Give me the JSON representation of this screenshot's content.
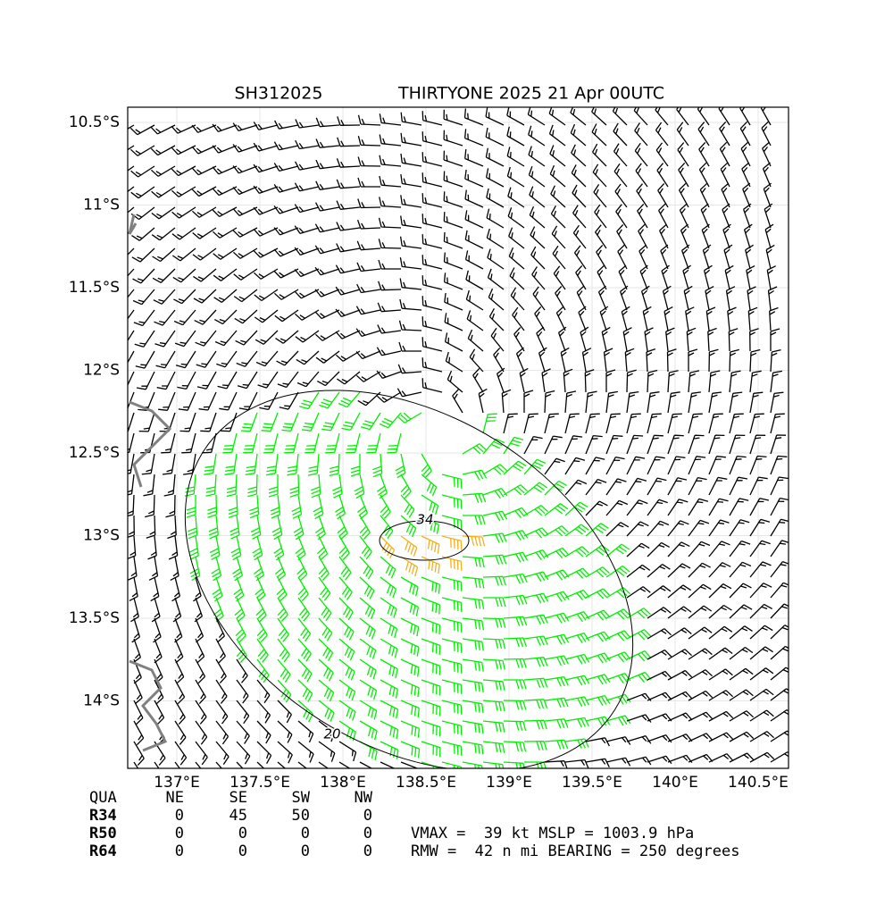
{
  "chart_data": {
    "type": "barbs",
    "title": [
      "SH312025",
      "THIRTYONE 2025 21 Apr 00UTC"
    ],
    "xlim": [
      136.704,
      140.683
    ],
    "xticks": [
      {
        "value": 137,
        "label": "137°E"
      },
      {
        "value": 137.5,
        "label": "137.5°E"
      },
      {
        "value": 138,
        "label": "138°E"
      },
      {
        "value": 138.5,
        "label": "138.5°E"
      },
      {
        "value": 139,
        "label": "139°E"
      },
      {
        "value": 139.5,
        "label": "139.5°E"
      },
      {
        "value": 140,
        "label": "140°E"
      },
      {
        "value": 140.5,
        "label": "140.5°E"
      }
    ],
    "ylim": [
      -14.408,
      -10.408
    ],
    "yticks": [
      {
        "value": -10.5,
        "label": "10.5°S"
      },
      {
        "value": -11,
        "label": "11°S"
      },
      {
        "value": -11.5,
        "label": "11.5°S"
      },
      {
        "value": -12,
        "label": "12°S"
      },
      {
        "value": -12.5,
        "label": "12.5°S"
      },
      {
        "value": -13,
        "label": "13°S"
      },
      {
        "value": -13.5,
        "label": "13.5°S"
      },
      {
        "value": -14,
        "label": "14°S"
      }
    ],
    "grid": true,
    "contours": [
      20,
      34
    ],
    "colors": {
      "barb_low": "#000000",
      "barb_34": "#00ee00",
      "barb_50": "#f0b020",
      "contour": "#000000",
      "coast": "#808080"
    }
  },
  "table": {
    "header": [
      "QUA",
      "NE",
      "SE",
      "SW",
      "NW"
    ],
    "rows": [
      [
        "R34",
        0,
        45,
        50,
        0
      ],
      [
        "R50",
        0,
        0,
        0,
        0
      ],
      [
        "R64",
        0,
        0,
        0,
        0
      ]
    ]
  },
  "stats": [
    "VMAX =  39 kt MSLP = 1003.9 hPa",
    "RMW =  42 n mi BEARING = 250 degrees"
  ]
}
